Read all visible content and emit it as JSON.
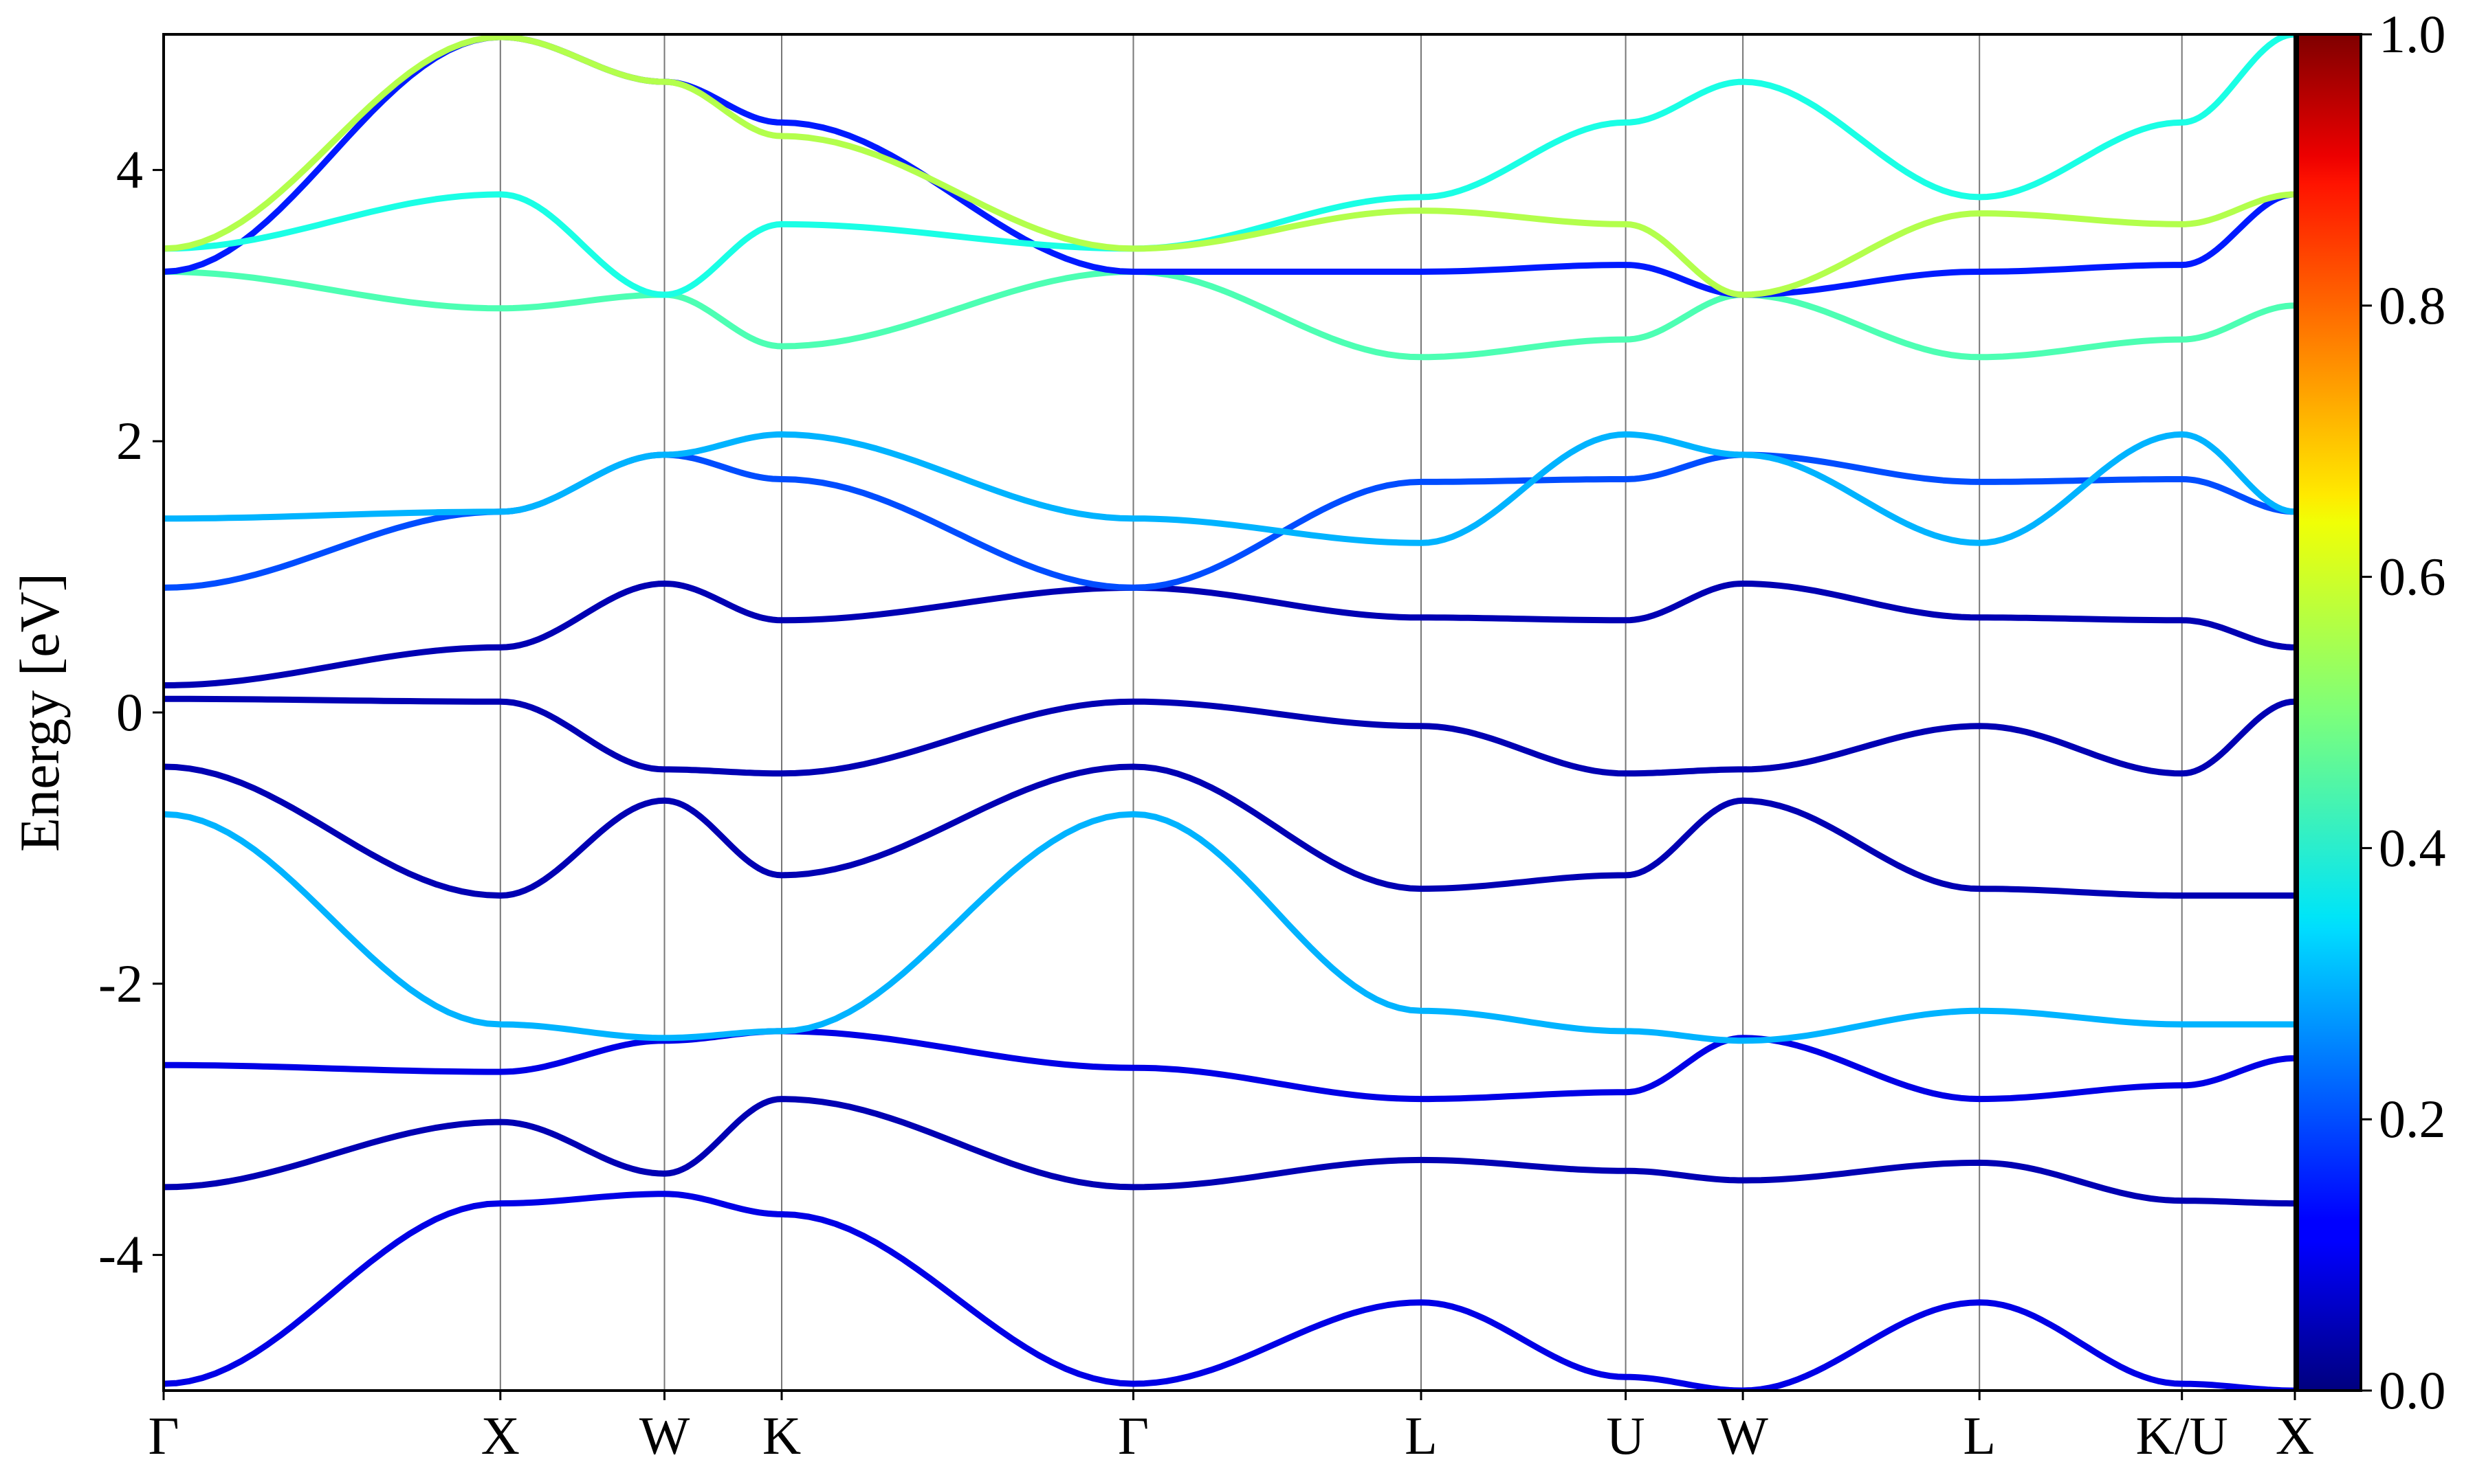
{
  "chart_data": {
    "type": "line",
    "title": "",
    "xlabel": "",
    "ylabel": "Energy [eV]",
    "ylim": [
      -5,
      5
    ],
    "xlim": [
      0,
      1
    ],
    "grid": "vertical lines at high-symmetry points",
    "legend": "none",
    "y_ticks": [
      "-4",
      "-2",
      "0",
      "2",
      "4"
    ],
    "y_tick_values": [
      -4,
      -2,
      0,
      2,
      4
    ],
    "high_symmetry_points": [
      {
        "label": "Γ",
        "x": 0.0
      },
      {
        "label": "X",
        "x": 0.158
      },
      {
        "label": "W",
        "x": 0.235
      },
      {
        "label": "K",
        "x": 0.29
      },
      {
        "label": "Γ",
        "x": 0.455
      },
      {
        "label": "L",
        "x": 0.59
      },
      {
        "label": "U",
        "x": 0.686
      },
      {
        "label": "W",
        "x": 0.741
      },
      {
        "label": "L",
        "x": 0.852
      },
      {
        "label": "K/U",
        "x": 0.947
      },
      {
        "label": "X",
        "x": 1.0
      }
    ],
    "colorbar": {
      "colormap": "jet",
      "range": [
        0,
        1
      ],
      "ticks": [
        "0.0",
        "0.2",
        "0.4",
        "0.6",
        "0.8",
        "1.0"
      ],
      "tick_values": [
        0,
        0.2,
        0.4,
        0.6,
        0.8,
        1.0
      ]
    },
    "series": [
      {
        "x": [
          0,
          0.158,
          0.235,
          0.29,
          0.455,
          0.59,
          0.686,
          0.741,
          0.852,
          0.947,
          1.0
        ],
        "y": [
          -4.95,
          -3.62,
          -3.55,
          -3.7,
          -4.95,
          -4.35,
          -4.9,
          -5.0,
          -4.35,
          -4.95,
          -5.0
        ],
        "weight": 0.1
      },
      {
        "x": [
          0,
          0.158,
          0.235,
          0.29,
          0.455,
          0.59,
          0.686,
          0.741,
          0.852,
          0.947,
          1.0
        ],
        "y": [
          -3.5,
          -3.02,
          -3.4,
          -2.85,
          -3.5,
          -3.3,
          -3.38,
          -3.45,
          -3.32,
          -3.6,
          -3.62
        ],
        "weight": 0.05
      },
      {
        "x": [
          0,
          0.158,
          0.235,
          0.29,
          0.455,
          0.59,
          0.686,
          0.741,
          0.852,
          0.947,
          1.0
        ],
        "y": [
          -2.6,
          -2.65,
          -2.42,
          -2.35,
          -2.62,
          -2.85,
          -2.8,
          -2.4,
          -2.85,
          -2.75,
          -2.55
        ],
        "weight": 0.1
      },
      {
        "x": [
          0,
          0.158,
          0.235,
          0.29,
          0.455,
          0.59,
          0.686,
          0.741,
          0.852,
          0.947,
          1.0
        ],
        "y": [
          -0.75,
          -2.3,
          -2.4,
          -2.35,
          -0.75,
          -2.2,
          -2.35,
          -2.42,
          -2.2,
          -2.3,
          -2.3
        ],
        "weight": 0.3
      },
      {
        "x": [
          0,
          0.158,
          0.235,
          0.29,
          0.455,
          0.59,
          0.686,
          0.741,
          0.852,
          0.947,
          1.0
        ],
        "y": [
          -0.4,
          -1.35,
          -0.65,
          -1.2,
          -0.4,
          -1.3,
          -1.2,
          -0.65,
          -1.3,
          -1.35,
          -1.35
        ],
        "weight": 0.05
      },
      {
        "x": [
          0,
          0.158,
          0.235,
          0.29,
          0.455,
          0.59,
          0.686,
          0.741,
          0.852,
          0.947,
          1.0
        ],
        "y": [
          0.1,
          0.08,
          -0.42,
          -0.45,
          0.08,
          -0.1,
          -0.45,
          -0.42,
          -0.1,
          -0.45,
          0.08
        ],
        "weight": 0.05
      },
      {
        "x": [
          0,
          0.158,
          0.235,
          0.29,
          0.455,
          0.59,
          0.686,
          0.741,
          0.852,
          0.947,
          1.0
        ],
        "y": [
          0.2,
          0.48,
          0.95,
          0.68,
          0.92,
          0.7,
          0.68,
          0.95,
          0.7,
          0.68,
          0.48
        ],
        "weight": 0.05
      },
      {
        "x": [
          0,
          0.158,
          0.235,
          0.29,
          0.455,
          0.59,
          0.686,
          0.741,
          0.852,
          0.947,
          1.0
        ],
        "y": [
          0.92,
          1.48,
          1.9,
          1.72,
          0.92,
          1.7,
          1.72,
          1.9,
          1.7,
          1.72,
          1.48
        ],
        "weight": 0.2
      },
      {
        "x": [
          0,
          0.158,
          0.235,
          0.29,
          0.455,
          0.59,
          0.686,
          0.741,
          0.852,
          0.947,
          1.0
        ],
        "y": [
          1.43,
          1.48,
          1.9,
          2.05,
          1.43,
          1.25,
          2.05,
          1.9,
          1.25,
          2.05,
          1.48
        ],
        "weight": 0.3
      },
      {
        "x": [
          0,
          0.158,
          0.235,
          0.29,
          0.455,
          0.59,
          0.686,
          0.741,
          0.852,
          0.947,
          1.0
        ],
        "y": [
          3.25,
          2.98,
          3.08,
          2.7,
          3.25,
          2.62,
          2.75,
          3.08,
          2.62,
          2.75,
          3.0
        ],
        "weight": 0.45
      },
      {
        "x": [
          0,
          0.158,
          0.235,
          0.29,
          0.455,
          0.59,
          0.686,
          0.741,
          0.852,
          0.947,
          1.0
        ],
        "y": [
          3.25,
          4.98,
          4.65,
          4.35,
          3.25,
          3.25,
          3.3,
          3.08,
          3.25,
          3.3,
          3.82
        ],
        "weight": 0.15
      },
      {
        "x": [
          0,
          0.158,
          0.235,
          0.29,
          0.455,
          0.59,
          0.686,
          0.741,
          0.852,
          0.947,
          1.0
        ],
        "y": [
          3.42,
          3.82,
          3.08,
          3.6,
          3.42,
          3.8,
          4.35,
          4.65,
          3.8,
          4.35,
          5.0
        ],
        "weight": 0.4
      },
      {
        "x": [
          0,
          0.158,
          0.235,
          0.29,
          0.455,
          0.59,
          0.686,
          0.741,
          0.852,
          0.947,
          1.0
        ],
        "y": [
          3.42,
          4.98,
          4.65,
          4.25,
          3.42,
          3.7,
          3.6,
          3.08,
          3.68,
          3.6,
          3.82
        ],
        "weight": 0.55
      }
    ]
  }
}
